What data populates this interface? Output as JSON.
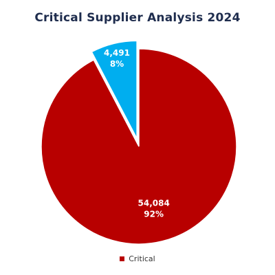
{
  "chart_data": {
    "type": "pie",
    "title": "Critical Supplier Analysis 2024",
    "slices": [
      {
        "value": 54084,
        "value_label": "54,084",
        "percent_label": "92%",
        "color": "#b80000",
        "exploded": false
      },
      {
        "value": 4491,
        "value_label": "4,491",
        "percent_label": "8%",
        "color": "#00aeef",
        "exploded": true
      }
    ],
    "legend": {
      "placement": "bottom",
      "entries": [
        {
          "label": "Critical",
          "color": "#b80000"
        }
      ]
    }
  }
}
